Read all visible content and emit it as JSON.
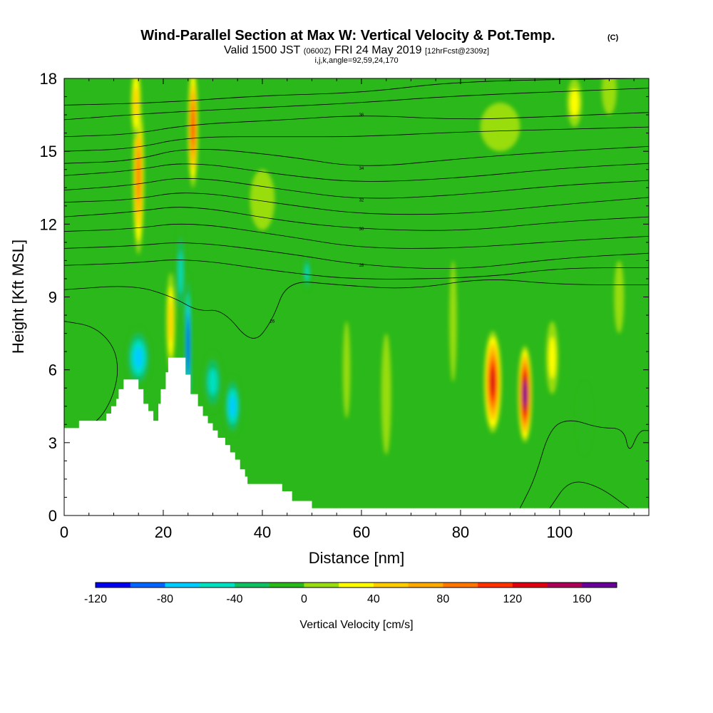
{
  "title": {
    "main": "Wind-Parallel Section at Max W: Vertical Velocity & Pot.Temp.",
    "copyright": "(C)",
    "valid_prefix": "Valid 1500 JST",
    "valid_utc": "(0600Z)",
    "valid_date": "FRI 24 May 2019",
    "forecast": "[12hrFcst@2309z]",
    "params": "i,j,k,angle=92,59,24,170"
  },
  "chart_data": {
    "type": "heatmap",
    "xlabel": "Distance [nm]",
    "ylabel": "Height [Kft MSL]",
    "xlim": [
      0,
      118
    ],
    "ylim": [
      0,
      18
    ],
    "x_ticks": [
      "0",
      "20",
      "40",
      "60",
      "80",
      "100"
    ],
    "y_ticks": [
      "0",
      "3",
      "6",
      "9",
      "12",
      "15",
      "18"
    ],
    "colorbar": {
      "label": "Vertical Velocity [cm/s]",
      "bounds": [
        -120,
        180
      ],
      "step": 20,
      "tick_labels": [
        "-120",
        "-80",
        "-40",
        "0",
        "40",
        "80",
        "120",
        "160"
      ],
      "colors": [
        "#0000ee",
        "#0066ff",
        "#00ccff",
        "#00e0c0",
        "#10c060",
        "#2ab81a",
        "#99dd11",
        "#ffff00",
        "#ffcc00",
        "#ffaa00",
        "#ff7700",
        "#ff3300",
        "#dd0011",
        "#aa0055",
        "#660099"
      ]
    },
    "velocity_features": [
      {
        "x": 15,
        "y": 14,
        "w": 2.2,
        "h": 6.5,
        "value": 90
      },
      {
        "x": 14.5,
        "y": 17,
        "w": 2,
        "h": 3,
        "value": 60
      },
      {
        "x": 26,
        "y": 16,
        "w": 2,
        "h": 5,
        "value": 110
      },
      {
        "x": 21.5,
        "y": 8,
        "w": 1.8,
        "h": 4,
        "value": 50
      },
      {
        "x": 25,
        "y": 7,
        "w": 1.4,
        "h": 6,
        "value": -120
      },
      {
        "x": 23.5,
        "y": 10,
        "w": 1.8,
        "h": 4,
        "value": -60
      },
      {
        "x": 34,
        "y": 4.5,
        "w": 3.5,
        "h": 2.5,
        "value": -75
      },
      {
        "x": 15,
        "y": 6.5,
        "w": 5,
        "h": 2.5,
        "value": -70
      },
      {
        "x": 30,
        "y": 5.5,
        "w": 4,
        "h": 2.5,
        "value": -55
      },
      {
        "x": 86.5,
        "y": 5.5,
        "w": 3.5,
        "h": 4.2,
        "value": 130
      },
      {
        "x": 93,
        "y": 5,
        "w": 2.8,
        "h": 4,
        "value": 175
      },
      {
        "x": 98.5,
        "y": 6.5,
        "w": 2.5,
        "h": 3,
        "value": 40
      },
      {
        "x": 78.5,
        "y": 8,
        "w": 1.5,
        "h": 5,
        "value": 10
      },
      {
        "x": 103,
        "y": 17,
        "w": 3,
        "h": 2,
        "value": 40
      },
      {
        "x": 110,
        "y": 17.5,
        "w": 3,
        "h": 2,
        "value": 15
      },
      {
        "x": 49,
        "y": 10,
        "w": 1.5,
        "h": 1.5,
        "value": -45
      },
      {
        "x": 105,
        "y": 4,
        "w": 3,
        "h": 3,
        "value": -20
      },
      {
        "x": 57,
        "y": 6,
        "w": 1.5,
        "h": 4,
        "value": 10
      },
      {
        "x": 65,
        "y": 5,
        "w": 2,
        "h": 5,
        "value": 15
      },
      {
        "x": 112,
        "y": 9,
        "w": 2,
        "h": 3,
        "value": 15
      },
      {
        "x": 88,
        "y": 16,
        "w": 8,
        "h": 2,
        "value": 10
      },
      {
        "x": 40,
        "y": 13,
        "w": 5,
        "h": 2.5,
        "value": 15
      }
    ],
    "terrain": [
      [
        0,
        3.6
      ],
      [
        3,
        3.6
      ],
      [
        3,
        3.9
      ],
      [
        8.5,
        3.9
      ],
      [
        8.5,
        4.2
      ],
      [
        9.5,
        4.2
      ],
      [
        9.5,
        4.5
      ],
      [
        10.5,
        4.5
      ],
      [
        10.5,
        4.8
      ],
      [
        11,
        4.8
      ],
      [
        11,
        5.2
      ],
      [
        12,
        5.2
      ],
      [
        12,
        5.6
      ],
      [
        15,
        5.6
      ],
      [
        15,
        5.2
      ],
      [
        16,
        5.2
      ],
      [
        16,
        4.6
      ],
      [
        17,
        4.6
      ],
      [
        17,
        4.3
      ],
      [
        18,
        4.3
      ],
      [
        18,
        3.9
      ],
      [
        19,
        3.9
      ],
      [
        19,
        4.6
      ],
      [
        19.5,
        4.6
      ],
      [
        19.5,
        5.2
      ],
      [
        20.5,
        5.2
      ],
      [
        20.5,
        5.9
      ],
      [
        21,
        5.9
      ],
      [
        21,
        6.5
      ],
      [
        24.5,
        6.5
      ],
      [
        24.5,
        5.8
      ],
      [
        25.5,
        5.8
      ],
      [
        25.5,
        5.0
      ],
      [
        27,
        5.0
      ],
      [
        27,
        4.5
      ],
      [
        28,
        4.5
      ],
      [
        28,
        4.1
      ],
      [
        29,
        4.1
      ],
      [
        29,
        3.8
      ],
      [
        30,
        3.8
      ],
      [
        30,
        3.5
      ],
      [
        31,
        3.5
      ],
      [
        31,
        3.2
      ],
      [
        32.5,
        3.2
      ],
      [
        32.5,
        2.9
      ],
      [
        33.5,
        2.9
      ],
      [
        33.5,
        2.6
      ],
      [
        34.5,
        2.6
      ],
      [
        34.5,
        2.3
      ],
      [
        35.5,
        2.3
      ],
      [
        35.5,
        1.9
      ],
      [
        36.5,
        1.9
      ],
      [
        36.5,
        1.6
      ],
      [
        37,
        1.6
      ],
      [
        37,
        1.3
      ],
      [
        44,
        1.3
      ],
      [
        44,
        1.0
      ],
      [
        46,
        1.0
      ],
      [
        46,
        0.6
      ],
      [
        50,
        0.6
      ],
      [
        50,
        0.3
      ],
      [
        118,
        0.3
      ]
    ],
    "isentropes": [
      {
        "label": "",
        "pts": [
          [
            0,
            16.9
          ],
          [
            20,
            17.0
          ],
          [
            40,
            17.3
          ],
          [
            60,
            17.4
          ],
          [
            80,
            17.9
          ],
          [
            118,
            18.0
          ]
        ]
      },
      {
        "label": "",
        "pts": [
          [
            0,
            16.3
          ],
          [
            20,
            16.6
          ],
          [
            40,
            16.8
          ],
          [
            60,
            17.0
          ],
          [
            80,
            17.3
          ],
          [
            118,
            17.6
          ]
        ]
      },
      {
        "label": "36",
        "pts": [
          [
            0,
            15.6
          ],
          [
            14,
            15.7
          ],
          [
            25,
            16.1
          ],
          [
            45,
            16.3
          ],
          [
            60,
            16.5
          ],
          [
            80,
            16.3
          ],
          [
            95,
            16.4
          ],
          [
            118,
            16.6
          ]
        ]
      },
      {
        "label": "",
        "pts": [
          [
            0,
            15.0
          ],
          [
            14,
            15.1
          ],
          [
            25,
            15.6
          ],
          [
            45,
            15.6
          ],
          [
            60,
            15.6
          ],
          [
            80,
            15.8
          ],
          [
            100,
            15.9
          ],
          [
            118,
            16.0
          ]
        ]
      },
      {
        "label": "34",
        "pts": [
          [
            0,
            14.5
          ],
          [
            14,
            14.6
          ],
          [
            25,
            15.2
          ],
          [
            45,
            14.8
          ],
          [
            60,
            14.3
          ],
          [
            80,
            14.7
          ],
          [
            100,
            15.0
          ],
          [
            118,
            15.2
          ]
        ]
      },
      {
        "label": "",
        "pts": [
          [
            0,
            14.0
          ],
          [
            14,
            14.2
          ],
          [
            25,
            14.6
          ],
          [
            45,
            14.0
          ],
          [
            60,
            13.7
          ],
          [
            80,
            13.9
          ],
          [
            100,
            14.3
          ],
          [
            118,
            14.5
          ]
        ]
      },
      {
        "label": "32",
        "pts": [
          [
            0,
            13.4
          ],
          [
            14,
            13.6
          ],
          [
            25,
            14.0
          ],
          [
            45,
            13.4
          ],
          [
            60,
            13.0
          ],
          [
            80,
            13.2
          ],
          [
            100,
            13.6
          ],
          [
            118,
            13.8
          ]
        ]
      },
      {
        "label": "",
        "pts": [
          [
            0,
            12.9
          ],
          [
            14,
            13.0
          ],
          [
            25,
            13.4
          ],
          [
            45,
            12.8
          ],
          [
            60,
            12.4
          ],
          [
            80,
            12.4
          ],
          [
            100,
            12.8
          ],
          [
            118,
            13.1
          ]
        ]
      },
      {
        "label": "30",
        "pts": [
          [
            0,
            12.3
          ],
          [
            14,
            12.5
          ],
          [
            25,
            12.8
          ],
          [
            45,
            12.1
          ],
          [
            60,
            11.8
          ],
          [
            80,
            11.7
          ],
          [
            100,
            12.1
          ],
          [
            118,
            12.3
          ]
        ]
      },
      {
        "label": "",
        "pts": [
          [
            0,
            11.7
          ],
          [
            14,
            11.8
          ],
          [
            25,
            12.1
          ],
          [
            45,
            11.5
          ],
          [
            60,
            11.0
          ],
          [
            80,
            11.0
          ],
          [
            100,
            11.3
          ],
          [
            118,
            11.5
          ]
        ]
      },
      {
        "label": "28",
        "pts": [
          [
            0,
            11.0
          ],
          [
            14,
            11.1
          ],
          [
            25,
            11.3
          ],
          [
            45,
            10.8
          ],
          [
            60,
            10.3
          ],
          [
            80,
            10.1
          ],
          [
            100,
            10.6
          ],
          [
            118,
            10.8
          ]
        ]
      },
      {
        "label": "",
        "pts": [
          [
            0,
            10.3
          ],
          [
            14,
            10.4
          ],
          [
            25,
            10.6
          ],
          [
            45,
            10.0
          ],
          [
            60,
            9.7
          ],
          [
            85,
            9.8
          ],
          [
            100,
            10.2
          ],
          [
            118,
            10.2
          ]
        ]
      },
      {
        "label": "26",
        "pts": [
          [
            0,
            9.3
          ],
          [
            14,
            9.5
          ],
          [
            22,
            9.0
          ],
          [
            27,
            8.4
          ],
          [
            32,
            8.5
          ],
          [
            38,
            7.0
          ],
          [
            42,
            8.0
          ],
          [
            45,
            9.7
          ],
          [
            55,
            9.5
          ],
          [
            70,
            9.3
          ],
          [
            85,
            9.8
          ],
          [
            100,
            9.5
          ],
          [
            118,
            9.5
          ]
        ]
      },
      {
        "label": "",
        "pts": [
          [
            0,
            8.0
          ],
          [
            6,
            7.8
          ],
          [
            10,
            7.0
          ],
          [
            11,
            6.0
          ],
          [
            10,
            5.0
          ],
          [
            8,
            4.2
          ],
          [
            6,
            3.8
          ]
        ]
      },
      {
        "label": "",
        "pts": [
          [
            92,
            0.3
          ],
          [
            95,
            1.5
          ],
          [
            98,
            3.6
          ],
          [
            102,
            4.0
          ],
          [
            108,
            3.6
          ],
          [
            113,
            3.6
          ],
          [
            114,
            2.5
          ],
          [
            116,
            3.5
          ],
          [
            118,
            3.5
          ]
        ]
      },
      {
        "label": "",
        "pts": [
          [
            98,
            0.3
          ],
          [
            102,
            1.5
          ],
          [
            108,
            1.2
          ],
          [
            114,
            0.3
          ]
        ]
      }
    ]
  }
}
